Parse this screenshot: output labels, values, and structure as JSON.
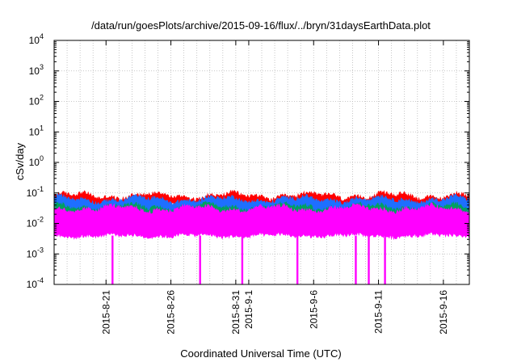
{
  "chart_data": {
    "type": "line",
    "title": "/data/run/goesPlots/archive/2015-09-16/flux/../bryn/31daysEarthData.plot",
    "xlabel": "Coordinated Universal Time (UTC)",
    "ylabel": "cSv/day",
    "yscale": "log",
    "ylim": [
      0.0001,
      10000
    ],
    "xlim": [
      "2015-08-17",
      "2015-09-18"
    ],
    "grid": true,
    "y_ticks": [
      {
        "base": "10",
        "exp": "-4",
        "value": 0.0001
      },
      {
        "base": "10",
        "exp": "-3",
        "value": 0.001
      },
      {
        "base": "10",
        "exp": "-2",
        "value": 0.01
      },
      {
        "base": "10",
        "exp": "-1",
        "value": 0.1
      },
      {
        "base": "10",
        "exp": "0",
        "value": 1
      },
      {
        "base": "10",
        "exp": "1",
        "value": 10
      },
      {
        "base": "10",
        "exp": "2",
        "value": 100
      },
      {
        "base": "10",
        "exp": "3",
        "value": 1000
      },
      {
        "base": "10",
        "exp": "4",
        "value": 10000
      }
    ],
    "x_ticks": [
      {
        "date": "2015-08-21",
        "label": "2015-8-21"
      },
      {
        "date": "2015-08-26",
        "label": "2015-8-26"
      },
      {
        "date": "2015-08-31",
        "label": "2015-8-31"
      },
      {
        "date": "2015-09-01",
        "label": "2015-9-1"
      },
      {
        "date": "2015-09-06",
        "label": "2015-9-6"
      },
      {
        "date": "2015-09-11",
        "label": "2015-9-11"
      },
      {
        "date": "2015-09-16",
        "label": "2015-9-16"
      }
    ],
    "series": [
      {
        "color": "#ff0000",
        "typical_low": 0.045,
        "typical_high": 0.08
      },
      {
        "color": "#1e6fff",
        "typical_low": 0.025,
        "typical_high": 0.06
      },
      {
        "color": "#00a060",
        "typical_low": 0.02,
        "typical_high": 0.035
      },
      {
        "color": "#ff00ff",
        "typical_low": 0.004,
        "typical_high": 0.03
      }
    ],
    "dropouts": [
      "2015-08-21 12:00",
      "2015-08-28 06:00",
      "2015-08-31 12:00",
      "2015-09-04 18:00",
      "2015-09-09 06:00",
      "2015-09-10 06:00",
      "2015-09-11 12:00"
    ]
  }
}
